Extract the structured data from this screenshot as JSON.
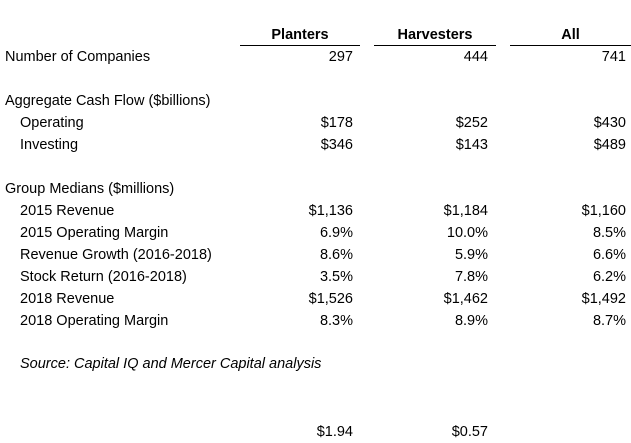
{
  "headers": {
    "planters": "Planters",
    "harvesters": "Harvesters",
    "all": "All"
  },
  "companies": {
    "label": "Number of Companies",
    "planters": "297",
    "harvesters": "444",
    "all": "741"
  },
  "cash_flow": {
    "heading": "Aggregate Cash Flow ($billions)",
    "rows": [
      {
        "label": "Operating",
        "planters": "$178",
        "harvesters": "$252",
        "all": "$430"
      },
      {
        "label": "Investing",
        "planters": "$346",
        "harvesters": "$143",
        "all": "$489"
      }
    ]
  },
  "medians": {
    "heading": "Group Medians ($millions)",
    "rows": [
      {
        "label": "2015 Revenue",
        "planters": "$1,136",
        "harvesters": "$1,184",
        "all": "$1,160"
      },
      {
        "label": "2015 Operating Margin",
        "planters": "6.9%",
        "harvesters": "10.0%",
        "all": "8.5%"
      },
      {
        "label": "Revenue Growth (2016-2018)",
        "planters": "8.6%",
        "harvesters": "5.9%",
        "all": "6.6%"
      },
      {
        "label": "Stock Return (2016-2018)",
        "planters": "3.5%",
        "harvesters": "7.8%",
        "all": "6.2%"
      },
      {
        "label": "2018 Revenue",
        "planters": "$1,526",
        "harvesters": "$1,462",
        "all": "$1,492"
      },
      {
        "label": "2018 Operating Margin",
        "planters": "8.3%",
        "harvesters": "8.9%",
        "all": "8.7%"
      }
    ]
  },
  "source": "Source: Capital IQ and Mercer Capital analysis",
  "footer": {
    "planters": "$1.94",
    "harvesters": "$0.57"
  }
}
